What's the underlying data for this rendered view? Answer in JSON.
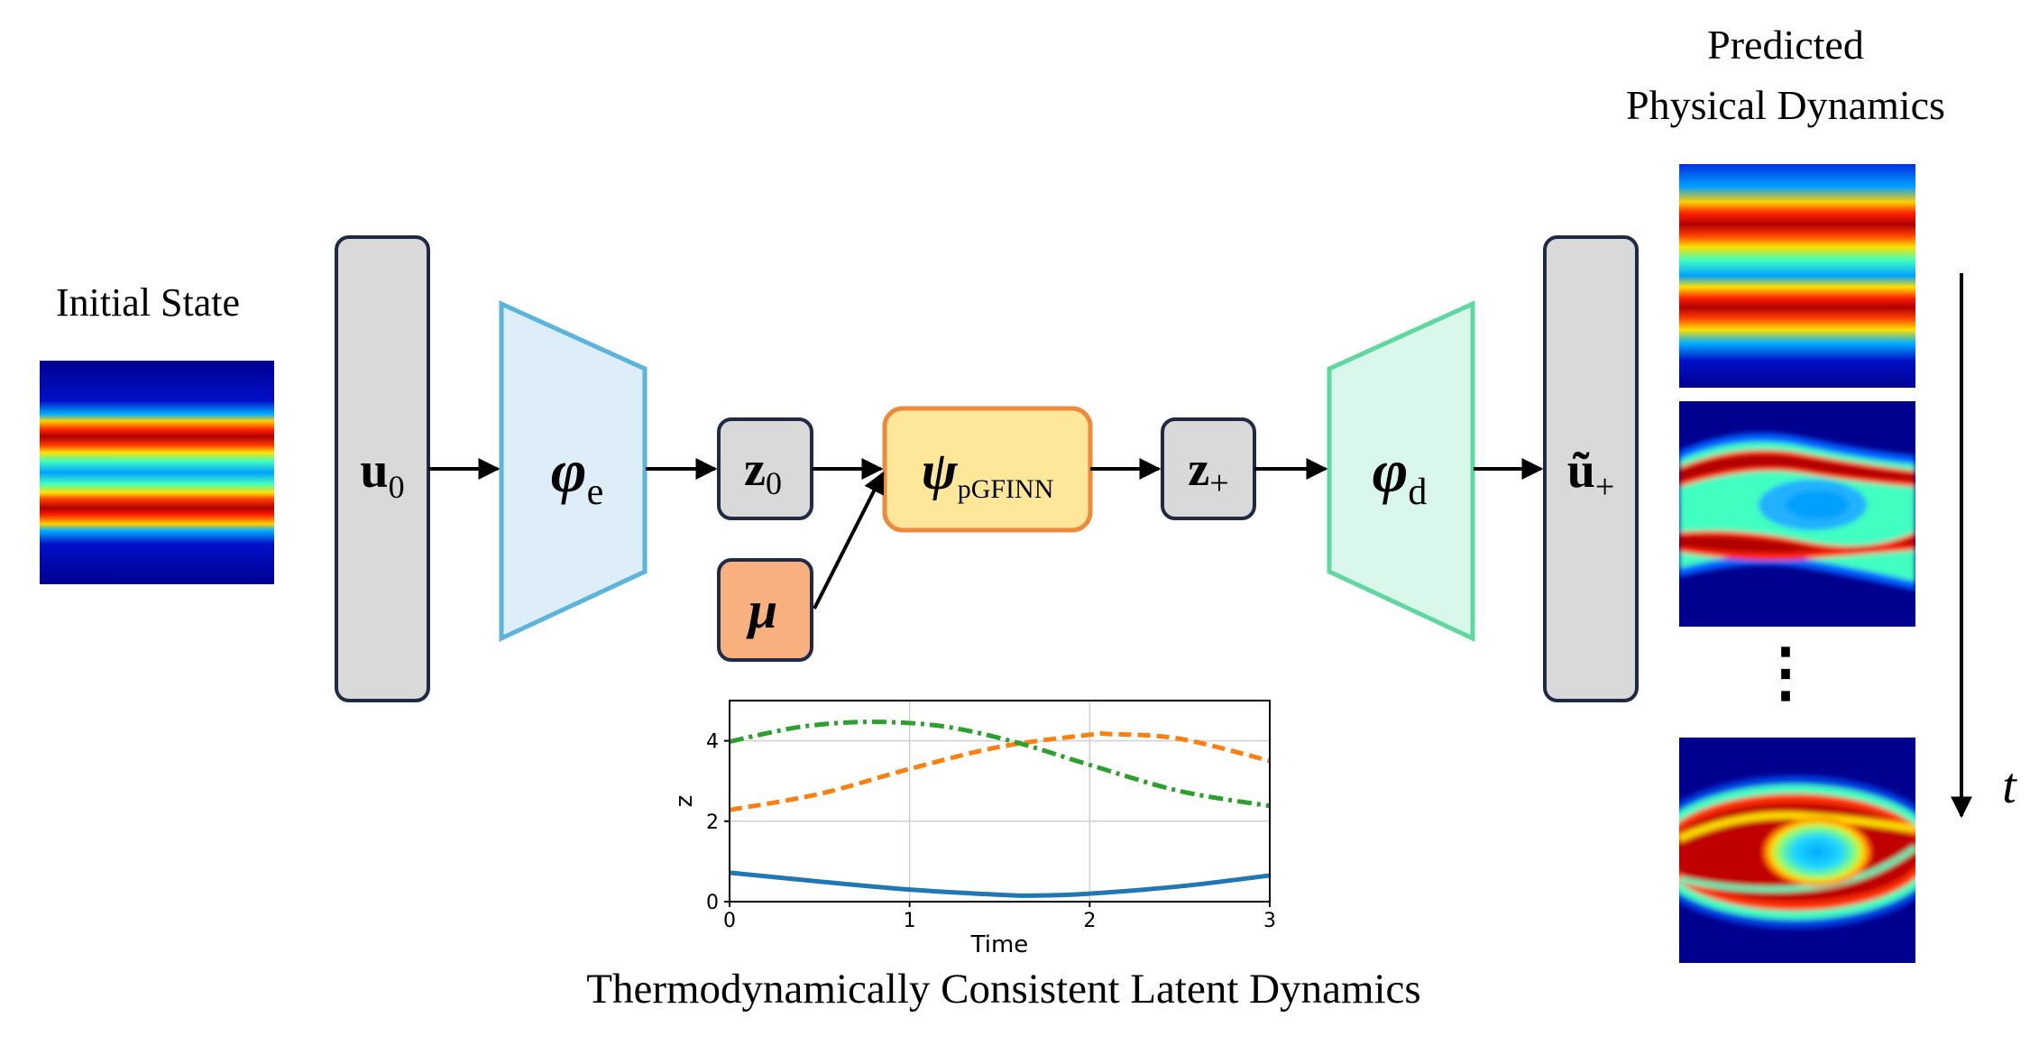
{
  "labels": {
    "initial_state": "Initial State",
    "predicted_line1": "Predicted",
    "predicted_line2": "Physical Dynamics",
    "latent_caption": "Thermodynamically Consistent Latent Dynamics",
    "time_symbol": "t",
    "ellipsis": "⋮"
  },
  "blocks": {
    "u0": {
      "symbol": "u",
      "subscript": "0"
    },
    "encoder": {
      "symbol": "φ",
      "subscript": "e"
    },
    "z0": {
      "symbol": "z",
      "subscript": "0"
    },
    "mu": {
      "symbol": "μ"
    },
    "psi": {
      "symbol": "ψ",
      "subscript": "pGFINN"
    },
    "zplus": {
      "symbol": "z",
      "subscript": "+"
    },
    "decoder": {
      "symbol": "φ",
      "subscript": "d"
    },
    "uplus": {
      "symbol": "ũ",
      "subscript": "+"
    }
  },
  "colors": {
    "gray_block": "#d9d9d9",
    "block_border": "#1f2a44",
    "encoder_fill": "#ddeef9",
    "encoder_border": "#5bb4dc",
    "decoder_fill": "#d9f7ea",
    "decoder_border": "#5fd8a0",
    "mu_fill": "#f7b07e",
    "psi_fill": "#ffe79a",
    "orange_border": "#ee8a3c",
    "series_blue": "#1f77b4",
    "series_orange": "#ff7f0e",
    "series_green": "#2ca02c"
  },
  "chart_data": {
    "type": "line",
    "title": "",
    "xlabel": "Time",
    "ylabel": "z",
    "xlim": [
      0,
      3
    ],
    "ylim": [
      0,
      5
    ],
    "xticks": [
      0,
      1,
      2,
      3
    ],
    "yticks": [
      0,
      2,
      4
    ],
    "grid": true,
    "series": [
      {
        "style": "solid",
        "color": "#1f77b4",
        "x": [
          0,
          0.5,
          1.0,
          1.5,
          1.7,
          2.0,
          2.5,
          3.0
        ],
        "y": [
          0.72,
          0.5,
          0.3,
          0.17,
          0.15,
          0.2,
          0.38,
          0.65
        ]
      },
      {
        "style": "dashed",
        "color": "#ff7f0e",
        "x": [
          0,
          0.5,
          1.0,
          1.5,
          2.0,
          2.1,
          2.5,
          3.0
        ],
        "y": [
          2.28,
          2.68,
          3.3,
          3.85,
          4.15,
          4.17,
          4.05,
          3.5
        ]
      },
      {
        "style": "dashdot",
        "color": "#2ca02c",
        "x": [
          0,
          0.4,
          0.8,
          1.2,
          1.6,
          2.0,
          2.5,
          3.0
        ],
        "y": [
          3.98,
          4.35,
          4.47,
          4.35,
          3.95,
          3.4,
          2.75,
          2.38
        ]
      }
    ]
  }
}
